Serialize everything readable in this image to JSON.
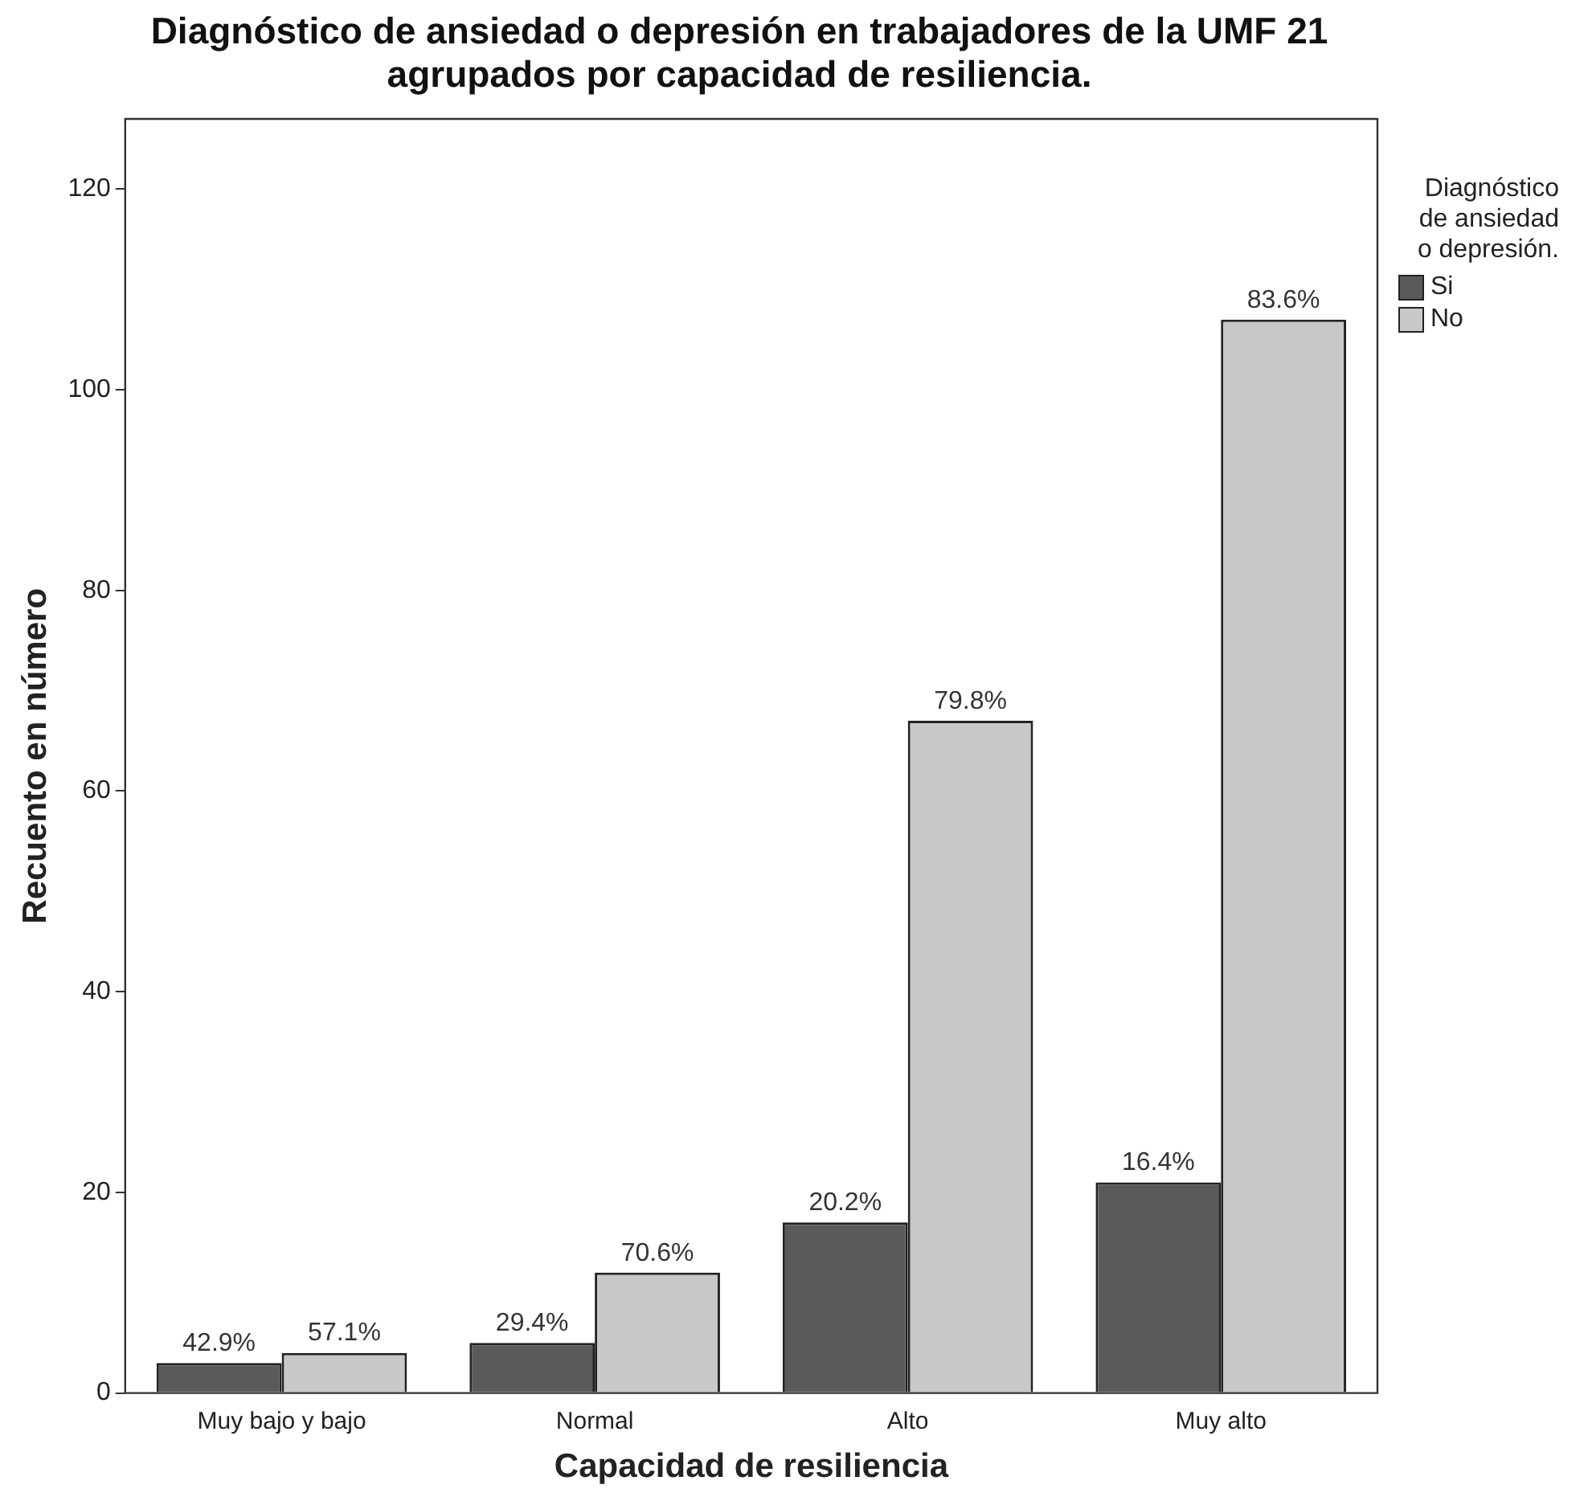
{
  "chart_data": {
    "type": "bar",
    "title": "Diagnóstico de ansiedad o depresión en trabajadores de la UMF 21 agrupados por capacidad de resiliencia.",
    "xlabel": "Capacidad de resiliencia",
    "ylabel": "Recuento en número",
    "legend_title": "Diagnóstico de ansiedad o depresión.",
    "categories": [
      "Muy bajo y bajo",
      "Normal",
      "Alto",
      "Muy alto"
    ],
    "series": [
      {
        "name": "Si",
        "color": "#5a5a5a",
        "values": [
          3,
          5,
          17,
          21
        ]
      },
      {
        "name": "No",
        "color": "#c8c8c8",
        "values": [
          4,
          12,
          67,
          107
        ]
      }
    ],
    "annotations": [
      {
        "text": "42.9%",
        "x": "Muy bajo y bajo",
        "y": 3
      },
      {
        "text": "57.1%",
        "x": "Muy bajo y bajo",
        "y": 4
      },
      {
        "text": "29.4%",
        "x": "Normal",
        "y": 5
      },
      {
        "text": "70.6%",
        "x": "Normal",
        "y": 12
      },
      {
        "text": "20.2%",
        "x": "Alto",
        "y": 17
      },
      {
        "text": "79.8%",
        "x": "Alto",
        "y": 67
      },
      {
        "text": "16.4%",
        "x": "Muy alto",
        "y": 21
      },
      {
        "text": "83.6%",
        "x": "Muy alto",
        "y": 107
      }
    ],
    "ylim": [
      0,
      127
    ],
    "yticks": [
      0,
      20,
      40,
      60,
      80,
      100,
      120
    ],
    "grid": false,
    "legend": "top right"
  }
}
